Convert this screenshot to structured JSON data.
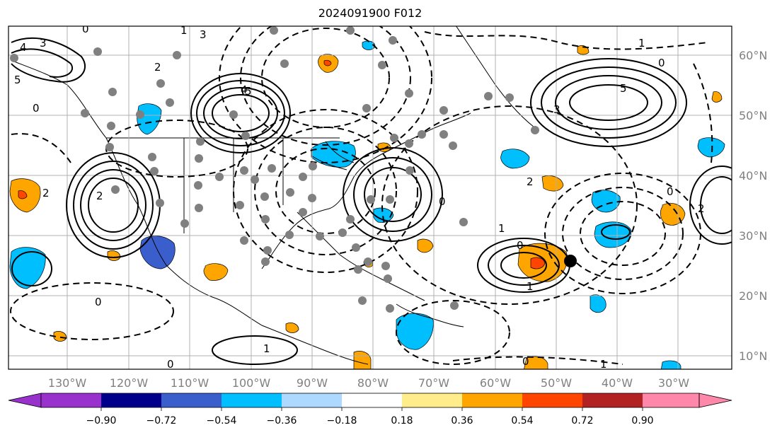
{
  "title": "2024091900 F012",
  "map": {
    "lon_ticks": [
      "130°W",
      "120°W",
      "110°W",
      "100°W",
      "90°W",
      "80°W",
      "70°W",
      "60°W",
      "50°W",
      "40°W",
      "30°W"
    ],
    "lat_ticks": [
      "60°N",
      "50°N",
      "40°N",
      "30°N",
      "20°N",
      "10°N"
    ],
    "contour_labels": [
      "4",
      "5",
      "3",
      "0",
      "2",
      "1",
      "4",
      "5",
      "3",
      "2",
      "0",
      "1",
      "1",
      "1",
      "5",
      "3",
      "0",
      "0",
      "2",
      "0",
      "0",
      "1",
      "0",
      "1",
      "0",
      "0",
      "1",
      "2",
      "2"
    ],
    "colors": {
      "grid": "#b0b0b0",
      "land": "#000000",
      "tick_label": "#808080",
      "marker": "#808080",
      "storm_center": "#000000"
    }
  },
  "colorbar": {
    "ticks": [
      "−0.90",
      "−0.72",
      "−0.54",
      "−0.36",
      "−0.18",
      "0.18",
      "0.36",
      "0.54",
      "0.72",
      "0.90"
    ],
    "colors": [
      "#9932cc",
      "#00008b",
      "#3a5fcd",
      "#00bfff",
      "#add8ff",
      "#ffffff",
      "#ffec8b",
      "#ffa500",
      "#ff4500",
      "#b22222",
      "#ff88aa"
    ]
  }
}
